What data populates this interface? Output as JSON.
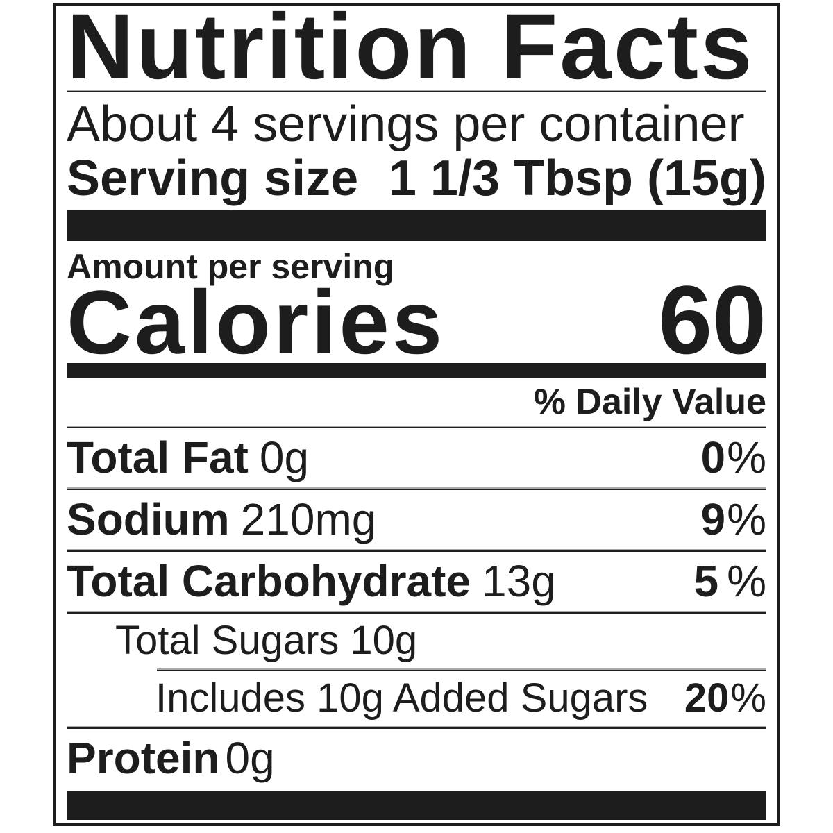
{
  "colors": {
    "ink": "#1d1d1d",
    "paper": "#ffffff",
    "rule_light": "#a8a8a8"
  },
  "label": {
    "title": "Nutrition Facts",
    "servings_per_container": "About 4 servings per container",
    "serving_size": {
      "label": "Serving size",
      "value": "1 1/3 Tbsp (15g)"
    },
    "amount_per_serving": "Amount per serving",
    "calories": {
      "label": "Calories",
      "value": "60"
    },
    "daily_value_header": "% Daily Value",
    "rows": [
      {
        "name": "Total Fat",
        "amount": "0g",
        "dv": "0",
        "dv_sign": "%"
      },
      {
        "name": "Sodium",
        "amount": "210mg",
        "dv": "9",
        "dv_sign": "%"
      },
      {
        "name": "Total Carbohydrate",
        "amount": "13g",
        "dv": "5",
        "dv_sign": "%"
      },
      {
        "name": "Total Sugars",
        "amount": "10g",
        "dv": "",
        "dv_sign": ""
      },
      {
        "name": "Includes 10g Added Sugars",
        "amount": "",
        "dv": "20",
        "dv_sign": "%"
      },
      {
        "name": "Protein",
        "amount": "0g",
        "dv": "",
        "dv_sign": ""
      }
    ]
  }
}
